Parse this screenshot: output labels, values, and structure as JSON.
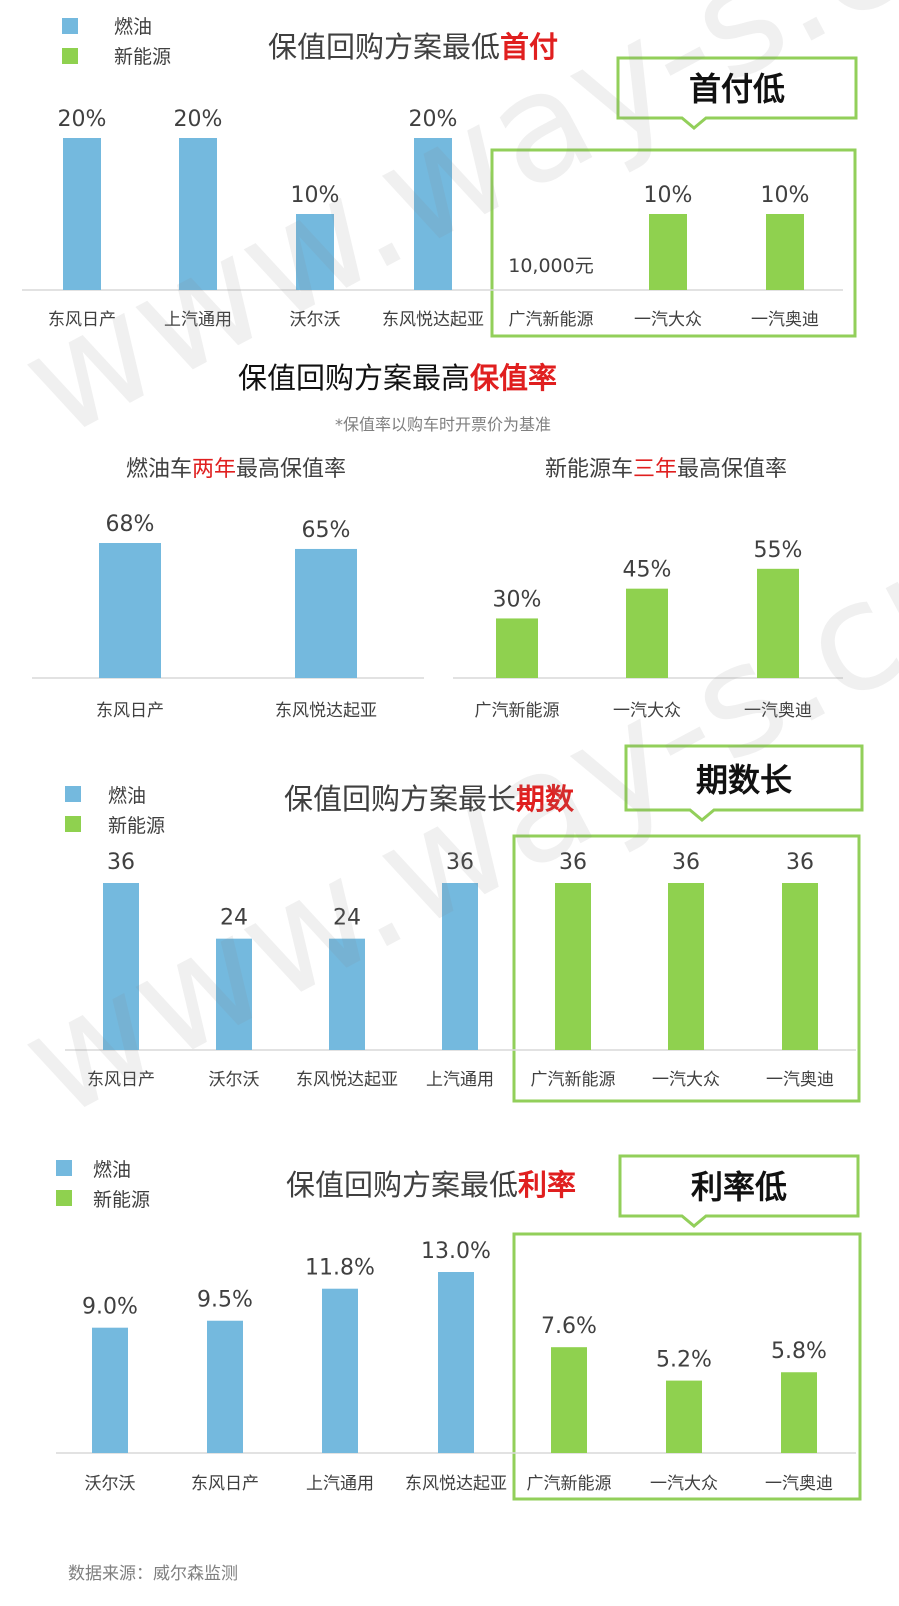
{
  "colors": {
    "fuel": "#74B9DE",
    "nev": "#8FD14F",
    "box": "#92CF5A",
    "accent_red": "#E01F1F",
    "title_gray": "#404040",
    "label_gray": "#404040",
    "axis": "#D9D9D9"
  },
  "legend": {
    "fuel": "燃油",
    "nev": "新能源"
  },
  "titles": {
    "p1": {
      "main": "保值回购方案最低",
      "accent": "首付"
    },
    "p2": {
      "main": "保值回购方案最高",
      "accent": "保值率"
    },
    "p3": {
      "main": "保值回购方案最长",
      "accent": "期数"
    },
    "p4": {
      "main": "保值回购方案最低",
      "accent": "利率"
    }
  },
  "callouts": {
    "p1": "首付低",
    "p3": "期数长",
    "p4": "利率低"
  },
  "subtitle_p2": "*保值率以购车时开票价为基准",
  "subtitles": {
    "left": {
      "pre": "燃油车",
      "accent": "两年",
      "post": "最高保值率"
    },
    "right": {
      "pre": "新能源车",
      "accent": "三年",
      "post": "最高保值率"
    }
  },
  "source": "数据来源：威尔森监测",
  "watermark": "www.way-s.cn",
  "chart_data": [
    {
      "type": "bar",
      "title": "保值回购方案最低首付",
      "categories": [
        "东风日产",
        "上汽通用",
        "沃尔沃",
        "东风悦达起亚",
        "广汽新能源",
        "一汽大众",
        "一汽奥迪"
      ],
      "groups": [
        "燃油",
        "燃油",
        "燃油",
        "燃油",
        "新能源",
        "新能源",
        "新能源"
      ],
      "values": [
        20,
        20,
        10,
        20,
        null,
        10,
        10
      ],
      "value_labels": [
        "20%",
        "20%",
        "10%",
        "20%",
        "10,000元",
        "10%",
        "10%"
      ],
      "unit": "%",
      "ylim": [
        0,
        20
      ]
    },
    {
      "type": "bar",
      "title": "燃油车两年最高保值率",
      "categories": [
        "东风日产",
        "东风悦达起亚"
      ],
      "groups": [
        "燃油",
        "燃油"
      ],
      "values": [
        68,
        65
      ],
      "value_labels": [
        "68%",
        "65%"
      ],
      "unit": "%",
      "ylim": [
        0,
        68
      ]
    },
    {
      "type": "bar",
      "title": "新能源车三年最高保值率",
      "categories": [
        "广汽新能源",
        "一汽大众",
        "一汽奥迪"
      ],
      "groups": [
        "新能源",
        "新能源",
        "新能源"
      ],
      "values": [
        30,
        45,
        55
      ],
      "value_labels": [
        "30%",
        "45%",
        "55%"
      ],
      "unit": "%",
      "ylim": [
        0,
        68
      ]
    },
    {
      "type": "bar",
      "title": "保值回购方案最长期数",
      "categories": [
        "东风日产",
        "沃尔沃",
        "东风悦达起亚",
        "上汽通用",
        "广汽新能源",
        "一汽大众",
        "一汽奥迪"
      ],
      "groups": [
        "燃油",
        "燃油",
        "燃油",
        "燃油",
        "新能源",
        "新能源",
        "新能源"
      ],
      "values": [
        36,
        24,
        24,
        36,
        36,
        36,
        36
      ],
      "value_labels": [
        "36",
        "24",
        "24",
        "36",
        "36",
        "36",
        "36"
      ],
      "ylim": [
        0,
        36
      ]
    },
    {
      "type": "bar",
      "title": "保值回购方案最低利率",
      "categories": [
        "沃尔沃",
        "东风日产",
        "上汽通用",
        "东风悦达起亚",
        "广汽新能源",
        "一汽大众",
        "一汽奥迪"
      ],
      "groups": [
        "燃油",
        "燃油",
        "燃油",
        "燃油",
        "新能源",
        "新能源",
        "新能源"
      ],
      "values": [
        9.0,
        9.5,
        11.8,
        13.0,
        7.6,
        5.2,
        5.8
      ],
      "value_labels": [
        "9.0%",
        "9.5%",
        "11.8%",
        "13.0%",
        "7.6%",
        "5.2%",
        "5.8%"
      ],
      "unit": "%",
      "ylim": [
        0,
        13
      ]
    }
  ]
}
